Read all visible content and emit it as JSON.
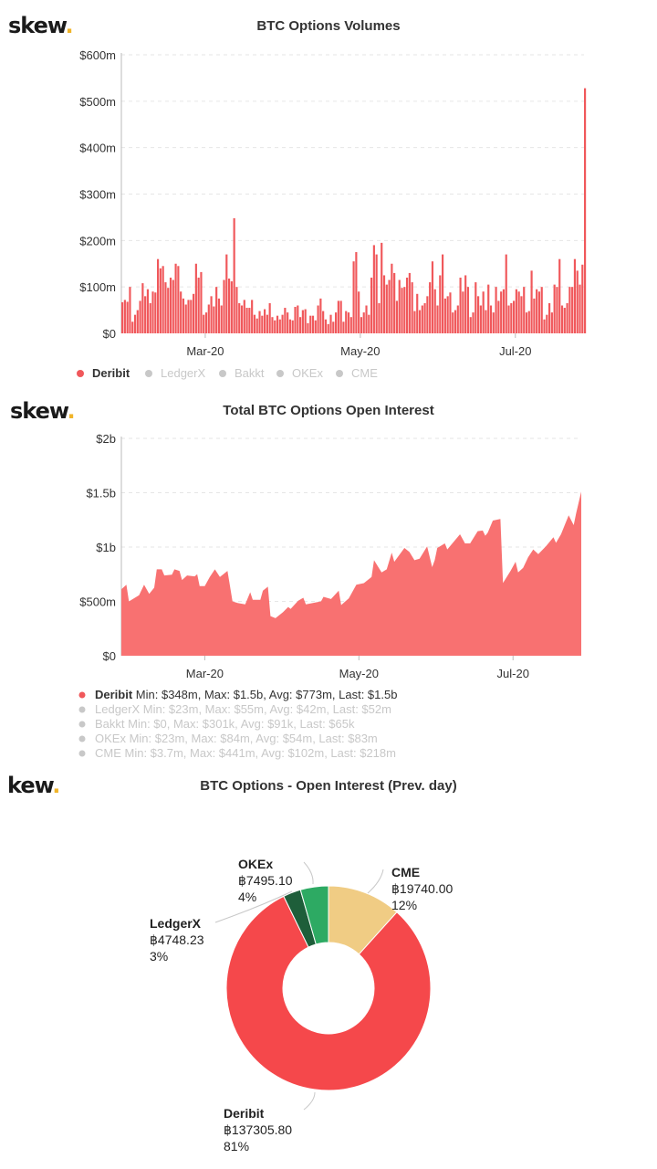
{
  "brand": {
    "logo_text": "skew",
    "logo_dot": ".",
    "logo_text_cropped": "kew",
    "accent": "#f0b429"
  },
  "chart_data": [
    {
      "type": "bar",
      "title": "BTC Options Volumes",
      "y_ticks": [
        "$0",
        "$100m",
        "$200m",
        "$300m",
        "$400m",
        "$500m",
        "$600m"
      ],
      "ylim": [
        0,
        600
      ],
      "y_unit": "$m",
      "x_ticks": [
        {
          "label": "Mar-20",
          "date": "2020-03-01"
        },
        {
          "label": "May-20",
          "date": "2020-05-01"
        },
        {
          "label": "Jul-20",
          "date": "2020-07-01"
        }
      ],
      "xlim": [
        "2020-01-28",
        "2020-07-28"
      ],
      "grid": true,
      "legend_placement": "bottom-left",
      "legend": [
        {
          "name": "Deribit",
          "active": true,
          "color": "#f0585b"
        },
        {
          "name": "LedgerX",
          "active": false,
          "color": "#cccccc"
        },
        {
          "name": "Bakkt",
          "active": false,
          "color": "#cccccc"
        },
        {
          "name": "OKEx",
          "active": false,
          "color": "#cccccc"
        },
        {
          "name": "CME",
          "active": false,
          "color": "#cccccc"
        }
      ],
      "series": [
        {
          "name": "Deribit",
          "color": "#f0585b",
          "daily": [
            {
              "month": "2020-01",
              "from_day": 28,
              "values": [
                67,
                72,
                68,
                100
              ]
            },
            {
              "month": "2020-02",
              "from_day": 1,
              "values": [
                25,
                40,
                50,
                70,
                108,
                80,
                95,
                65,
                90,
                88,
                160,
                140,
                145,
                110,
                98,
                120,
                115,
                150,
                145,
                90,
                75,
                62,
                72,
                72,
                85,
                150,
                120,
                132,
                40
              ]
            },
            {
              "month": "2020-03",
              "from_day": 1,
              "values": [
                45,
                62,
                80,
                58,
                100,
                75,
                60,
                115,
                170,
                118,
                112,
                248,
                100,
                65,
                60,
                72,
                55,
                55,
                72,
                40,
                32,
                48,
                38,
                52,
                40,
                65,
                35,
                28,
                38,
                30,
                40
              ]
            },
            {
              "month": "2020-04",
              "from_day": 1,
              "values": [
                55,
                45,
                30,
                28,
                57,
                60,
                35,
                50,
                52,
                22,
                38,
                38,
                28,
                60,
                75,
                48,
                30,
                20,
                40,
                25,
                45,
                70,
                70,
                25,
                48,
                45,
                35,
                155,
                175,
                90
              ]
            },
            {
              "month": "2020-05",
              "from_day": 1,
              "values": [
                35,
                45,
                60,
                40,
                120,
                190,
                170,
                65,
                195,
                125,
                105,
                115,
                150,
                130,
                70,
                115,
                98,
                100,
                120,
                130,
                110,
                48,
                85,
                50,
                60,
                65,
                80,
                110,
                155,
                95,
                60
              ]
            },
            {
              "month": "2020-06",
              "from_day": 1,
              "values": [
                125,
                170,
                75,
                80,
                88,
                45,
                50,
                60,
                120,
                90,
                125,
                100,
                35,
                45,
                110,
                80,
                60,
                90,
                50,
                105,
                60,
                45,
                100,
                70,
                90,
                95,
                170,
                60,
                65,
                70
              ]
            },
            {
              "month": "2020-07",
              "from_day": 1,
              "values": [
                95,
                90,
                80,
                100,
                45,
                48,
                135,
                75,
                95,
                90,
                100,
                30,
                40,
                65,
                45,
                105,
                100,
                160,
                60,
                55,
                65,
                100,
                100,
                160,
                135,
                105,
                148,
                528
              ]
            }
          ]
        }
      ]
    },
    {
      "type": "area",
      "title": "Total BTC Options Open Interest",
      "y_ticks": [
        "$0",
        "$500m",
        "$1b",
        "$1.5b",
        "$2b"
      ],
      "ylim": [
        0,
        2000
      ],
      "y_unit": "$m",
      "x_ticks": [
        {
          "label": "Mar-20",
          "date": "2020-03-01"
        },
        {
          "label": "May-20",
          "date": "2020-05-01"
        },
        {
          "label": "Jul-20",
          "date": "2020-07-01"
        }
      ],
      "xlim": [
        "2020-01-28",
        "2020-07-28"
      ],
      "grid": true,
      "legend_placement": "bottom-left",
      "legend": [
        {
          "name": "Deribit",
          "stats": "Min: $348m, Max: $1.5b, Avg: $773m, Last: $1.5b",
          "active": true,
          "color": "#f0585b"
        },
        {
          "name": "LedgerX",
          "stats": "Min: $23m, Max: $55m, Avg: $42m, Last: $52m",
          "active": false,
          "color": "#cccccc"
        },
        {
          "name": "Bakkt",
          "stats": "Min: $0, Max: $301k, Avg: $91k, Last: $65k",
          "active": false,
          "color": "#cccccc"
        },
        {
          "name": "OKEx",
          "stats": "Min: $23m, Max: $84m, Avg: $54m, Last: $83m",
          "active": false,
          "color": "#cccccc"
        },
        {
          "name": "CME",
          "stats": "Min: $3.7m, Max: $441m, Avg: $102m, Last: $218m",
          "active": false,
          "color": "#cccccc"
        }
      ],
      "series": [
        {
          "name": "Deribit",
          "color": "#f87171",
          "points": [
            [
              "2020-01-28",
              612
            ],
            [
              "2020-01-30",
              654
            ],
            [
              "2020-01-31",
              500
            ],
            [
              "2020-02-04",
              556
            ],
            [
              "2020-02-06",
              654
            ],
            [
              "2020-02-08",
              570
            ],
            [
              "2020-02-10",
              626
            ],
            [
              "2020-02-11",
              795
            ],
            [
              "2020-02-13",
              795
            ],
            [
              "2020-02-14",
              739
            ],
            [
              "2020-02-17",
              745
            ],
            [
              "2020-02-18",
              795
            ],
            [
              "2020-02-20",
              781
            ],
            [
              "2020-02-21",
              697
            ],
            [
              "2020-02-23",
              739
            ],
            [
              "2020-02-26",
              730
            ],
            [
              "2020-02-27",
              750
            ],
            [
              "2020-02-28",
              640
            ],
            [
              "2020-03-01",
              640
            ],
            [
              "2020-03-03",
              725
            ],
            [
              "2020-03-05",
              795
            ],
            [
              "2020-03-07",
              725
            ],
            [
              "2020-03-10",
              781
            ],
            [
              "2020-03-12",
              500
            ],
            [
              "2020-03-14",
              486
            ],
            [
              "2020-03-17",
              472
            ],
            [
              "2020-03-19",
              584
            ],
            [
              "2020-03-20",
              514
            ],
            [
              "2020-03-23",
              514
            ],
            [
              "2020-03-24",
              598
            ],
            [
              "2020-03-26",
              635
            ],
            [
              "2020-03-27",
              365
            ],
            [
              "2020-03-29",
              345
            ],
            [
              "2020-04-01",
              402
            ],
            [
              "2020-04-03",
              449
            ],
            [
              "2020-04-04",
              430
            ],
            [
              "2020-04-07",
              506
            ],
            [
              "2020-04-09",
              534
            ],
            [
              "2020-04-10",
              472
            ],
            [
              "2020-04-16",
              500
            ],
            [
              "2020-04-17",
              542
            ],
            [
              "2020-04-20",
              522
            ],
            [
              "2020-04-23",
              598
            ],
            [
              "2020-04-24",
              466
            ],
            [
              "2020-04-27",
              528
            ],
            [
              "2020-04-30",
              654
            ],
            [
              "2020-05-03",
              668
            ],
            [
              "2020-05-06",
              725
            ],
            [
              "2020-05-07",
              879
            ],
            [
              "2020-05-10",
              767
            ],
            [
              "2020-05-12",
              795
            ],
            [
              "2020-05-14",
              949
            ],
            [
              "2020-05-15",
              865
            ],
            [
              "2020-05-19",
              992
            ],
            [
              "2020-05-21",
              955
            ],
            [
              "2020-05-23",
              879
            ],
            [
              "2020-05-25",
              893
            ],
            [
              "2020-05-28",
              1006
            ],
            [
              "2020-05-30",
              815
            ],
            [
              "2020-05-31",
              879
            ],
            [
              "2020-06-01",
              992
            ],
            [
              "2020-06-04",
              1034
            ],
            [
              "2020-06-05",
              978
            ],
            [
              "2020-06-10",
              1118
            ],
            [
              "2020-06-12",
              1034
            ],
            [
              "2020-06-14",
              1034
            ],
            [
              "2020-06-17",
              1146
            ],
            [
              "2020-06-19",
              1152
            ],
            [
              "2020-06-20",
              1104
            ],
            [
              "2020-06-21",
              1132
            ],
            [
              "2020-06-23",
              1244
            ],
            [
              "2020-06-26",
              1258
            ],
            [
              "2020-06-27",
              669
            ],
            [
              "2020-06-30",
              781
            ],
            [
              "2020-07-02",
              865
            ],
            [
              "2020-07-03",
              767
            ],
            [
              "2020-07-05",
              809
            ],
            [
              "2020-07-07",
              907
            ],
            [
              "2020-07-09",
              978
            ],
            [
              "2020-07-11",
              935
            ],
            [
              "2020-07-14",
              1006
            ],
            [
              "2020-07-17",
              1090
            ],
            [
              "2020-07-18",
              1039
            ],
            [
              "2020-07-20",
              1118
            ],
            [
              "2020-07-23",
              1292
            ],
            [
              "2020-07-25",
              1202
            ],
            [
              "2020-07-26",
              1315
            ],
            [
              "2020-07-28",
              1511
            ]
          ]
        }
      ]
    },
    {
      "type": "pie",
      "variant": "donut",
      "title": "BTC Options - Open Interest (Prev. day)",
      "currency_symbol": "฿",
      "slices": [
        {
          "name": "CME",
          "value": 19740.0,
          "value_label": "฿19740.00",
          "percent_label": "12%",
          "color": "#f0cc84"
        },
        {
          "name": "Deribit",
          "value": 137305.8,
          "value_label": "฿137305.80",
          "percent_label": "81%",
          "color": "#f5484b"
        },
        {
          "name": "LedgerX",
          "value": 4748.23,
          "value_label": "฿4748.23",
          "percent_label": "3%",
          "color": "#1e5e3a"
        },
        {
          "name": "OKEx",
          "value": 7495.1,
          "value_label": "฿7495.10",
          "percent_label": "4%",
          "color": "#2daa63"
        }
      ]
    }
  ]
}
